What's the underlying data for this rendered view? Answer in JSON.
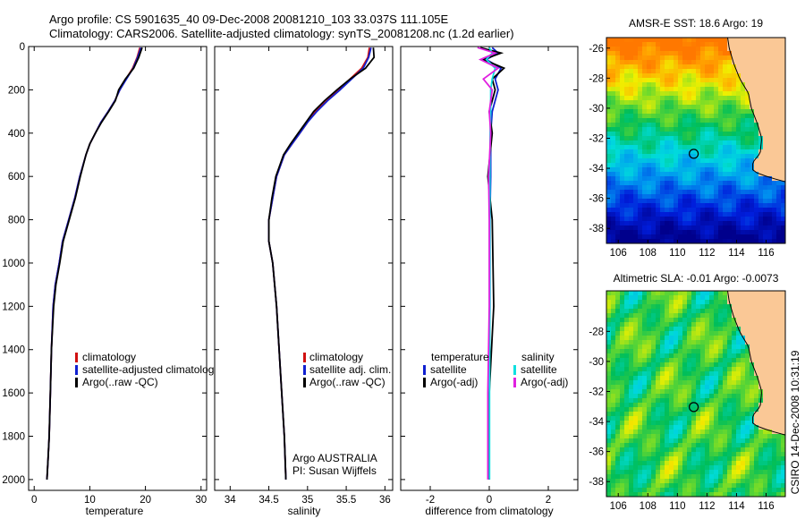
{
  "figure": {
    "title_line1": "Argo profile: CS 5901635_40 09-Dec-2008 20081210_103 33.037S 111.105E",
    "title_line2": "Climatology: CARS2006. Satellite-adjusted climatology: synTS_20081208.nc (1.2d earlier)",
    "credit": "CSIRO 14-Dec-2008 10:31:19"
  },
  "colors": {
    "climatology": "#d01010",
    "satellite": "#1020d0",
    "argo": "#000000",
    "sal_satellite": "#10e0e0",
    "sal_argo": "#e020e0",
    "land": "#fac896"
  },
  "chart_data": [
    {
      "type": "line",
      "xlabel": "temperature",
      "xlim": [
        -1,
        31
      ],
      "ylim": [
        0,
        2050
      ],
      "y_reversed": true,
      "xticks": [
        "0",
        "10",
        "20",
        "30"
      ],
      "yticks": [
        "0",
        "200",
        "400",
        "600",
        "800",
        "1000",
        "1200",
        "1400",
        "1600",
        "1800",
        "2000"
      ],
      "legend": [
        "climatology",
        "satellite-adjusted climatology",
        "Argo(..raw -QC)"
      ],
      "series": [
        {
          "name": "climatology",
          "x": [
            19.0,
            18.5,
            17.7,
            16.5,
            15.4,
            14.5,
            13.3,
            12.0,
            11.0,
            10.0,
            9.3,
            8.2,
            7.3,
            6.2,
            5.1,
            4.5,
            3.8,
            3.4,
            3.1,
            2.9,
            2.7,
            2.5,
            2.3
          ],
          "y": [
            5,
            50,
            100,
            150,
            200,
            250,
            300,
            350,
            400,
            450,
            500,
            600,
            700,
            800,
            900,
            1000,
            1100,
            1200,
            1400,
            1600,
            1800,
            1900,
            2000
          ]
        },
        {
          "name": "satellite-adjusted climatology",
          "x": [
            19.2,
            18.6,
            17.8,
            16.6,
            15.4,
            14.5,
            13.3,
            12.0,
            11.0,
            10.0,
            9.3,
            8.2,
            7.3,
            6.2,
            5.1,
            4.5,
            3.8,
            3.4,
            3.1,
            2.9,
            2.7,
            2.5,
            2.3
          ],
          "y": [
            5,
            50,
            100,
            150,
            200,
            250,
            300,
            350,
            400,
            450,
            500,
            600,
            700,
            800,
            900,
            1000,
            1100,
            1200,
            1400,
            1600,
            1800,
            1900,
            2000
          ]
        },
        {
          "name": "Argo(..raw -QC)",
          "x": [
            19.4,
            18.8,
            17.9,
            16.4,
            15.2,
            14.6,
            13.4,
            12.1,
            11.0,
            10.0,
            9.3,
            8.3,
            7.4,
            6.3,
            5.2,
            4.6,
            3.9,
            3.5,
            3.1,
            2.9,
            2.7,
            2.5,
            2.3
          ],
          "y": [
            5,
            50,
            100,
            150,
            200,
            250,
            300,
            350,
            400,
            450,
            500,
            600,
            700,
            800,
            900,
            1000,
            1100,
            1200,
            1400,
            1600,
            1800,
            1900,
            2000
          ]
        }
      ]
    },
    {
      "type": "line",
      "xlabel": "salinity",
      "xlim": [
        33.8,
        36.1
      ],
      "ylim": [
        0,
        2050
      ],
      "y_reversed": true,
      "xticks": [
        "34",
        "34.5",
        "35",
        "35.5",
        "36"
      ],
      "legend": [
        "climatology",
        "satellite adj. clim.",
        "Argo(..raw -QC)"
      ],
      "annotation": [
        "Argo AUSTRALIA",
        "PI: Susan Wijffels"
      ],
      "series": [
        {
          "name": "climatology",
          "x": [
            35.8,
            35.78,
            35.7,
            35.55,
            35.4,
            35.25,
            35.1,
            35.0,
            34.9,
            34.8,
            34.7,
            34.6,
            34.55,
            34.5,
            34.5,
            34.55,
            34.6,
            34.65,
            34.7,
            34.72
          ],
          "y": [
            5,
            50,
            100,
            150,
            200,
            250,
            300,
            350,
            400,
            450,
            500,
            600,
            700,
            800,
            900,
            1000,
            1200,
            1500,
            1800,
            2000
          ]
        },
        {
          "name": "satellite adj. clim.",
          "x": [
            35.82,
            35.79,
            35.72,
            35.57,
            35.42,
            35.26,
            35.12,
            35.0,
            34.9,
            34.8,
            34.7,
            34.6,
            34.55,
            34.5,
            34.5,
            34.55,
            34.6,
            34.65,
            34.7,
            34.72
          ],
          "y": [
            5,
            50,
            100,
            150,
            200,
            250,
            300,
            350,
            400,
            450,
            500,
            600,
            700,
            800,
            900,
            1000,
            1200,
            1500,
            1800,
            2000
          ]
        },
        {
          "name": "Argo(..raw -QC)",
          "x": [
            35.85,
            35.86,
            35.75,
            35.55,
            35.38,
            35.22,
            35.08,
            34.98,
            34.88,
            34.78,
            34.69,
            34.59,
            34.54,
            34.5,
            34.5,
            34.55,
            34.6,
            34.65,
            34.7,
            34.72
          ],
          "y": [
            5,
            50,
            100,
            150,
            200,
            250,
            300,
            350,
            400,
            450,
            500,
            600,
            700,
            800,
            900,
            1000,
            1200,
            1500,
            1800,
            2000
          ]
        }
      ]
    },
    {
      "type": "line",
      "xlabel": "difference from climatology",
      "xlim": [
        -3,
        3
      ],
      "ylim": [
        0,
        2050
      ],
      "y_reversed": true,
      "xticks": [
        "-2",
        "0",
        "2"
      ],
      "legend_temperature": {
        "heading": "temperature",
        "items": [
          "satellite",
          "Argo(-adj)"
        ]
      },
      "legend_salinity": {
        "heading": "salinity",
        "items": [
          "satellite",
          "Argo(-adj)"
        ]
      },
      "series": [
        {
          "name": "temperature satellite",
          "x": [
            0.1,
            0.3,
            -0.1,
            0.4,
            0.2,
            0.3,
            0.1,
            0.05,
            0.05,
            0.02,
            0.02,
            0.0,
            0.0
          ],
          "y": [
            5,
            30,
            60,
            100,
            150,
            200,
            300,
            400,
            600,
            800,
            1200,
            1600,
            2000
          ]
        },
        {
          "name": "temperature Argo(-adj)",
          "x": [
            -0.3,
            0.4,
            -0.2,
            0.5,
            0.1,
            0.2,
            0.0,
            0.1,
            -0.05,
            0.1,
            0.15,
            0.0,
            0.0
          ],
          "y": [
            5,
            30,
            60,
            100,
            150,
            200,
            300,
            400,
            600,
            800,
            1200,
            1600,
            2000
          ]
        },
        {
          "name": "salinity satellite",
          "x": [
            0.0,
            0.1,
            -0.1,
            0.2,
            0.1,
            0.05,
            0.05,
            0.03,
            0.02,
            0.02,
            0.02,
            0.01,
            0.01
          ],
          "y": [
            5,
            30,
            60,
            100,
            150,
            200,
            300,
            400,
            600,
            800,
            1200,
            1600,
            2000
          ]
        },
        {
          "name": "salinity Argo(-adj)",
          "x": [
            -0.4,
            0.2,
            -0.3,
            0.3,
            -0.2,
            0.1,
            0.0,
            0.05,
            -0.02,
            0.0,
            0.0,
            -0.05,
            -0.05
          ],
          "y": [
            5,
            30,
            60,
            100,
            150,
            200,
            300,
            400,
            600,
            800,
            1200,
            1600,
            2000
          ]
        }
      ]
    },
    {
      "type": "heatmap",
      "title": "AMSR-E SST: 18.6 Argo: 19",
      "xlim": [
        105.2,
        117.3
      ],
      "ylim": [
        -39,
        -25.3
      ],
      "xticks": [
        "106",
        "108",
        "110",
        "112",
        "114",
        "116"
      ],
      "yticks": [
        "-26",
        "-28",
        "-30",
        "-32",
        "-34",
        "-36",
        "-38"
      ],
      "marker": [
        111.105,
        -33.037
      ]
    },
    {
      "type": "heatmap",
      "title": "Altimetric SLA: -0.01 Argo: -0.0073",
      "xlim": [
        105.2,
        117.3
      ],
      "ylim": [
        -39,
        -25.3
      ],
      "xticks": [
        "106",
        "108",
        "110",
        "112",
        "114",
        "116"
      ],
      "yticks": [
        "-28",
        "-30",
        "-32",
        "-34",
        "-36",
        "-38"
      ],
      "marker": [
        111.105,
        -33.037
      ]
    }
  ]
}
